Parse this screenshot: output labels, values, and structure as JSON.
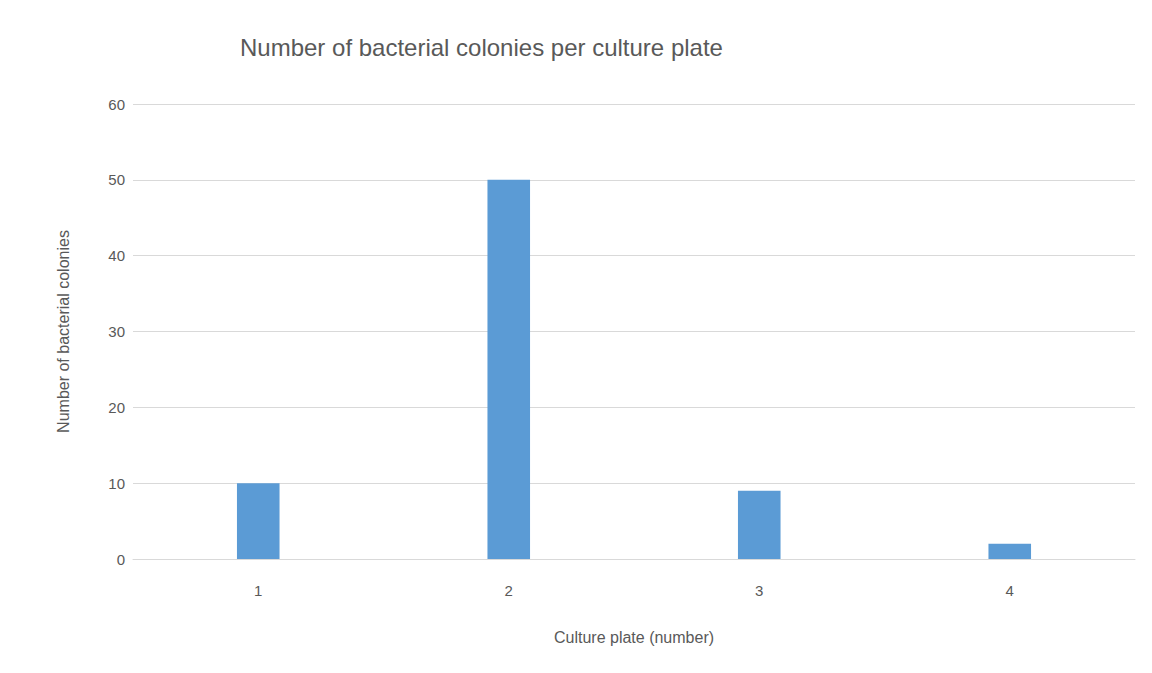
{
  "chart_data": {
    "type": "bar",
    "title": "Number of bacterial colonies per culture plate",
    "x_label": "Culture plate (number)",
    "y_label": "Number of bacterial colonies",
    "categories": [
      "1",
      "2",
      "3",
      "4"
    ],
    "values": [
      10,
      50,
      9,
      2
    ],
    "color": "#5b9bd5",
    "ylim": [
      0,
      60
    ],
    "yticks": [
      0,
      10,
      20,
      30,
      40,
      50,
      60
    ],
    "grid": true
  }
}
